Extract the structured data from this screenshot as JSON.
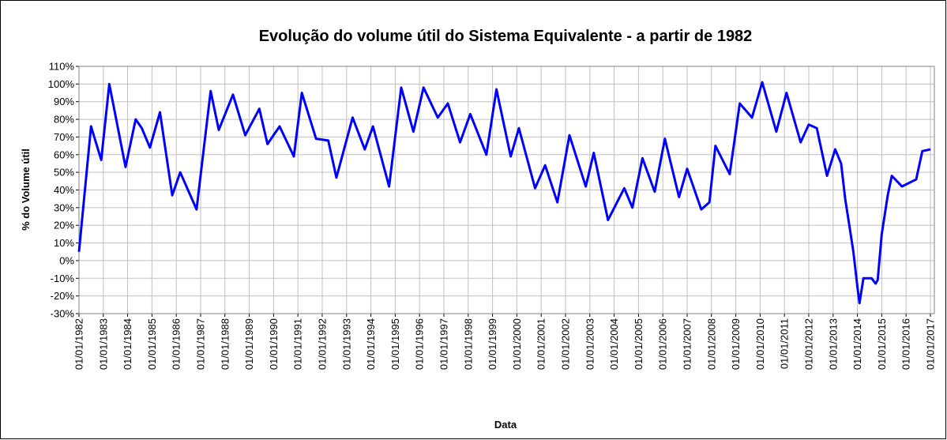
{
  "chart_data": {
    "type": "line",
    "title": "Evolução do volume útil do Sistema Equivalente - a partir de 1982",
    "x_label": "Data",
    "y_label": "% do Volume útil",
    "color": "#0000ff",
    "grid": true,
    "x": [
      "1982-01-01",
      "1982-07-01",
      "1982-12-01",
      "1983-04-01",
      "1983-12-01",
      "1984-05-01",
      "1984-08-01",
      "1984-12-01",
      "1985-05-01",
      "1985-11-01",
      "1986-03-01",
      "1986-11-01",
      "1987-06-01",
      "1987-10-01",
      "1988-05-01",
      "1988-11-01",
      "1989-06-01",
      "1989-10-01",
      "1990-04-01",
      "1990-11-01",
      "1991-03-01",
      "1991-10-01",
      "1992-04-01",
      "1992-08-01",
      "1993-04-01",
      "1993-10-01",
      "1994-02-01",
      "1994-10-01",
      "1995-04-01",
      "1995-10-01",
      "1996-03-01",
      "1996-10-01",
      "1997-03-01",
      "1997-09-01",
      "1998-02-01",
      "1998-10-01",
      "1999-03-01",
      "1999-10-01",
      "2000-02-01",
      "2000-10-01",
      "2001-03-01",
      "2001-09-01",
      "2002-03-01",
      "2002-11-01",
      "2003-03-01",
      "2003-10-01",
      "2004-06-01",
      "2004-10-01",
      "2005-03-01",
      "2005-09-01",
      "2006-02-01",
      "2006-09-01",
      "2007-01-01",
      "2007-08-01",
      "2007-12-01",
      "2008-03-01",
      "2008-10-01",
      "2009-03-01",
      "2009-09-01",
      "2010-02-01",
      "2010-09-01",
      "2011-02-01",
      "2011-09-01",
      "2012-01-01",
      "2012-05-01",
      "2012-10-01",
      "2013-02-01",
      "2013-05-01",
      "2013-07-01",
      "2013-09-01",
      "2013-11-01",
      "2014-01-01",
      "2014-02-01",
      "2014-04-01",
      "2014-08-01",
      "2014-10-01",
      "2014-11-01",
      "2015-01-01",
      "2015-04-01",
      "2015-06-01",
      "2015-11-01",
      "2016-06-01",
      "2016-09-01",
      "2017-01-01"
    ],
    "values": [
      5,
      76,
      57,
      100,
      53,
      80,
      75,
      64,
      84,
      37,
      50,
      29,
      96,
      74,
      94,
      71,
      86,
      66,
      76,
      59,
      95,
      69,
      68,
      47,
      81,
      63,
      76,
      42,
      98,
      73,
      98,
      81,
      89,
      67,
      83,
      60,
      97,
      59,
      75,
      41,
      54,
      33,
      71,
      42,
      61,
      23,
      41,
      30,
      58,
      39,
      69,
      36,
      52,
      29,
      33,
      65,
      49,
      89,
      81,
      101,
      73,
      95,
      67,
      77,
      75,
      48,
      63,
      55,
      35,
      20,
      5,
      -15,
      -24,
      -10,
      -10,
      -13,
      -11,
      15,
      37,
      48,
      42,
      46,
      62,
      63
    ],
    "xlim": [
      "1982-01-01",
      "2017-03-01"
    ],
    "xticks": [
      {
        "value": "1982-01-01",
        "label": "01/01/1982"
      },
      {
        "value": "1983-01-01",
        "label": "01/01/1983"
      },
      {
        "value": "1984-01-01",
        "label": "01/01/1984"
      },
      {
        "value": "1985-01-01",
        "label": "01/01/1985"
      },
      {
        "value": "1986-01-01",
        "label": "01/01/1986"
      },
      {
        "value": "1987-01-01",
        "label": "01/01/1987"
      },
      {
        "value": "1988-01-01",
        "label": "01/01/1988"
      },
      {
        "value": "1989-01-01",
        "label": "01/01/1989"
      },
      {
        "value": "1990-01-01",
        "label": "01/01/1990"
      },
      {
        "value": "1991-01-01",
        "label": "01/01/1991"
      },
      {
        "value": "1992-01-01",
        "label": "01/01/1992"
      },
      {
        "value": "1993-01-01",
        "label": "01/01/1993"
      },
      {
        "value": "1994-01-01",
        "label": "01/01/1994"
      },
      {
        "value": "1995-01-01",
        "label": "01/01/1995"
      },
      {
        "value": "1996-01-01",
        "label": "01/01/1996"
      },
      {
        "value": "1997-01-01",
        "label": "01/01/1997"
      },
      {
        "value": "1998-01-01",
        "label": "01/01/1998"
      },
      {
        "value": "1999-01-01",
        "label": "01/01/1999"
      },
      {
        "value": "2000-01-01",
        "label": "01/01/2000"
      },
      {
        "value": "2001-01-01",
        "label": "01/01/2001"
      },
      {
        "value": "2002-01-01",
        "label": "01/01/2002"
      },
      {
        "value": "2003-01-01",
        "label": "01/01/2003"
      },
      {
        "value": "2004-01-01",
        "label": "01/01/2004"
      },
      {
        "value": "2005-01-01",
        "label": "01/01/2005"
      },
      {
        "value": "2006-01-01",
        "label": "01/01/2006"
      },
      {
        "value": "2007-01-01",
        "label": "01/01/2007"
      },
      {
        "value": "2008-01-01",
        "label": "01/01/2008"
      },
      {
        "value": "2009-01-01",
        "label": "01/01/2009"
      },
      {
        "value": "2010-01-01",
        "label": "01/01/2010"
      },
      {
        "value": "2011-01-01",
        "label": "01/01/2011"
      },
      {
        "value": "2012-01-01",
        "label": "01/01/2012"
      },
      {
        "value": "2013-01-01",
        "label": "01/01/2013"
      },
      {
        "value": "2014-01-01",
        "label": "01/01/2014"
      },
      {
        "value": "2015-01-01",
        "label": "01/01/2015"
      },
      {
        "value": "2016-01-01",
        "label": "01/01/2016"
      },
      {
        "value": "2017-01-01",
        "label": "01/01/2017"
      }
    ],
    "ylim": [
      -30,
      110
    ],
    "yticks": [
      {
        "value": -30,
        "label": "-30%"
      },
      {
        "value": -20,
        "label": "-20%"
      },
      {
        "value": -10,
        "label": "-10%"
      },
      {
        "value": 0,
        "label": "0%"
      },
      {
        "value": 10,
        "label": "10%"
      },
      {
        "value": 20,
        "label": "20%"
      },
      {
        "value": 30,
        "label": "30%"
      },
      {
        "value": 40,
        "label": "40%"
      },
      {
        "value": 50,
        "label": "50%"
      },
      {
        "value": 60,
        "label": "60%"
      },
      {
        "value": 70,
        "label": "70%"
      },
      {
        "value": 80,
        "label": "80%"
      },
      {
        "value": 90,
        "label": "90%"
      },
      {
        "value": 100,
        "label": "100%"
      },
      {
        "value": 110,
        "label": "110%"
      }
    ]
  }
}
